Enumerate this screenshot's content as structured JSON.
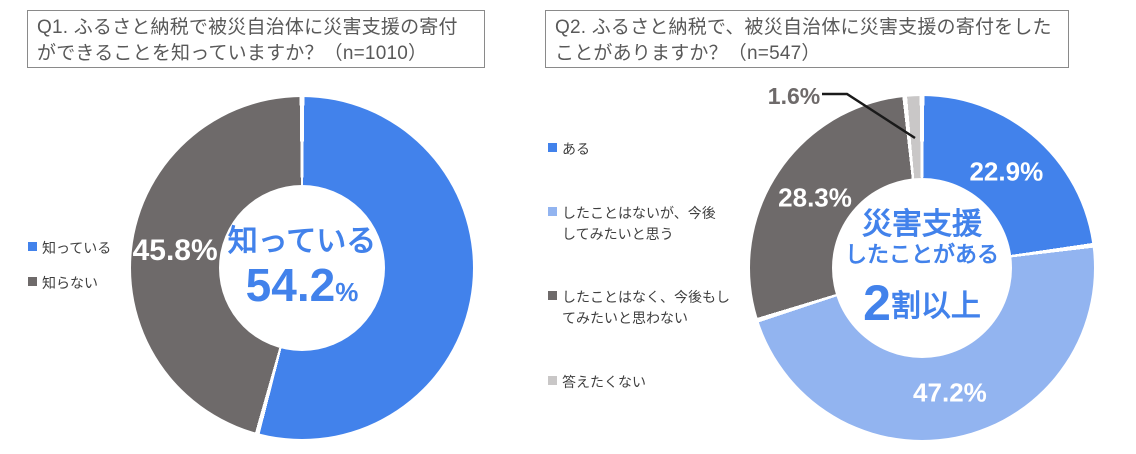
{
  "chart_data": [
    {
      "type": "pie",
      "donut": true,
      "title": "Q1. ふるさと納税で被災自治体に災害支援の寄付ができることを知っていますか？（n=1010）",
      "n": 1010,
      "labels": [
        "知っている",
        "知らない"
      ],
      "values": [
        54.2,
        45.8
      ],
      "colors": [
        "#4282eb",
        "#6e6a6a"
      ],
      "percent_labels": [
        "",
        "45.8%"
      ],
      "center_label": {
        "line1": "知っている",
        "value": "54.2",
        "unit": "%"
      },
      "legend_position": "left",
      "start_angle_deg": 0,
      "direction": "clockwise"
    },
    {
      "type": "pie",
      "donut": true,
      "title": "Q2. ふるさと納税で、被災自治体に災害支援の寄付をしたことがありますか？（n=547）",
      "n": 547,
      "labels": [
        "ある",
        "したことはないが、今後\nしてみたいと思う",
        "したことはなく、今後もし\nてみたいと思わない",
        "答えたくない"
      ],
      "values": [
        22.9,
        47.2,
        28.3,
        1.6
      ],
      "colors": [
        "#4282eb",
        "#92b4f0",
        "#6e6a6a",
        "#c9c7c7"
      ],
      "percent_labels": [
        "22.9%",
        "47.2%",
        "28.3%",
        ""
      ],
      "callout": {
        "slice_index": 3,
        "label": "1.6%"
      },
      "center_label": {
        "line1": "災害支援",
        "line2": "したことがある",
        "big": "2",
        "rest": "割以上"
      },
      "legend_position": "left",
      "start_angle_deg": 0,
      "direction": "clockwise"
    }
  ]
}
